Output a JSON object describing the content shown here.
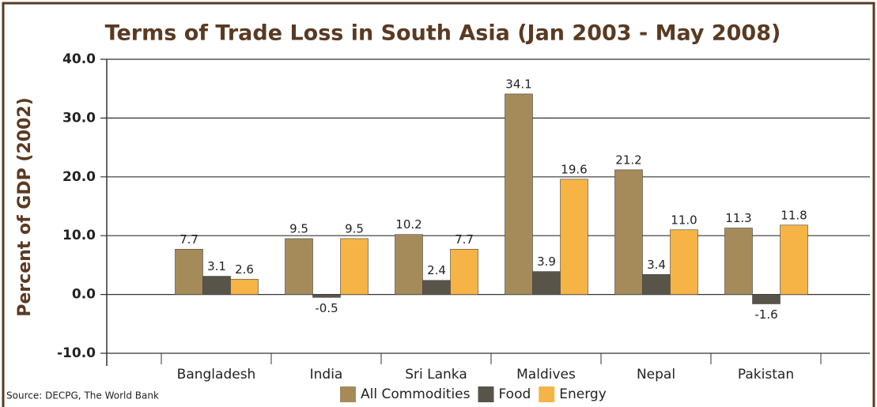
{
  "chart_data": {
    "type": "bar",
    "title": "Terms of Trade Loss in South Asia (Jan 2003 - May 2008)",
    "y_label": "Percent of GDP (2002)",
    "source": "Source: DECPG, The World Bank",
    "categories": [
      "Bangladesh",
      "India",
      "Sri Lanka",
      "Maldives",
      "Nepal",
      "Pakistan"
    ],
    "series": [
      {
        "name": "All Commodities",
        "color": "#a68b5a",
        "values": [
          7.7,
          9.5,
          10.2,
          34.1,
          21.2,
          11.3
        ],
        "value_labels": [
          "7.7",
          "9.5",
          "10.2",
          "34.1",
          "21.2",
          "11.3"
        ]
      },
      {
        "name": "Food",
        "color": "#58544a",
        "values": [
          3.1,
          -0.5,
          2.4,
          3.9,
          3.4,
          -1.6
        ],
        "value_labels": [
          "3.1",
          "-0.5",
          "2.4",
          "3.9",
          "3.4",
          "-1.6"
        ]
      },
      {
        "name": "Energy",
        "color": "#f5b445",
        "values": [
          2.6,
          9.5,
          7.7,
          19.6,
          11.0,
          11.8
        ],
        "value_labels": [
          "2.6",
          "9.5",
          "7.7",
          "19.6",
          "11.0",
          "11.8"
        ]
      }
    ],
    "ylim": [
      -10,
      40
    ],
    "yticks": [
      {
        "value": -10,
        "label": "-10.0"
      },
      {
        "value": 0,
        "label": "0.0"
      },
      {
        "value": 10,
        "label": "10.0"
      },
      {
        "value": 20,
        "label": "20.0"
      },
      {
        "value": 30,
        "label": "30.0"
      },
      {
        "value": 40,
        "label": "40.0"
      }
    ],
    "grid": true
  }
}
